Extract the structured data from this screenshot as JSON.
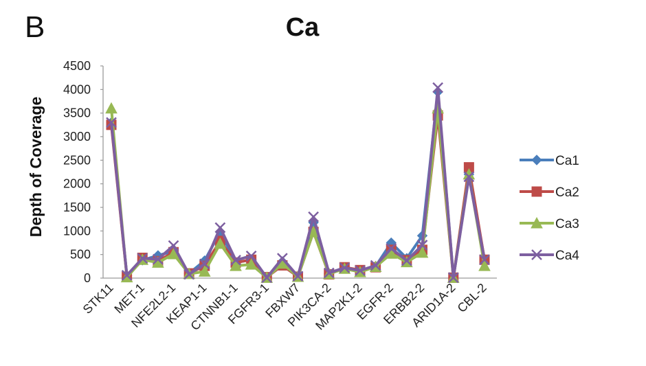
{
  "panel_label": "B",
  "chart_data": {
    "type": "line",
    "title": "Ca",
    "xlabel": "",
    "ylabel": "Depth of Coverage",
    "ylim": [
      0,
      4500
    ],
    "yticks": [
      0,
      500,
      1000,
      1500,
      2000,
      2500,
      3000,
      3500,
      4000,
      4500
    ],
    "grid": false,
    "legend_position": "right",
    "categories": [
      "STK11",
      "",
      "MET-1",
      "",
      "NFE2L2-1",
      "",
      "KEAP1-1",
      "",
      "CTNNB1-1",
      "",
      "FGFR3-1",
      "",
      "FBXW7",
      "",
      "PIK3CA-2",
      "",
      "MAP2K1-2",
      "",
      "EGFR-2",
      "",
      "ERBB2-2",
      "",
      "ARID1A-2",
      "",
      "CBL-2"
    ],
    "series": [
      {
        "name": "Ca1",
        "color": "#4a7ebb",
        "marker": "diamond",
        "values": [
          3300,
          50,
          380,
          480,
          570,
          100,
          370,
          980,
          330,
          390,
          20,
          350,
          30,
          1180,
          100,
          220,
          150,
          250,
          750,
          420,
          900,
          3950,
          20,
          2200,
          400
        ]
      },
      {
        "name": "Ca2",
        "color": "#be4b48",
        "marker": "square",
        "values": [
          3250,
          30,
          430,
          360,
          550,
          100,
          260,
          790,
          330,
          390,
          20,
          270,
          30,
          980,
          80,
          230,
          170,
          230,
          600,
          380,
          600,
          3450,
          10,
          2350,
          390
        ]
      },
      {
        "name": "Ca3",
        "color": "#98b954",
        "marker": "triangle",
        "values": [
          3600,
          20,
          390,
          330,
          510,
          90,
          140,
          730,
          260,
          290,
          10,
          310,
          30,
          980,
          90,
          200,
          130,
          240,
          520,
          340,
          540,
          3600,
          10,
          2200,
          260
        ]
      },
      {
        "name": "Ca4",
        "color": "#7d5fa0",
        "marker": "x",
        "values": [
          3300,
          60,
          420,
          400,
          690,
          80,
          300,
          1070,
          380,
          470,
          10,
          420,
          40,
          1300,
          110,
          220,
          160,
          270,
          630,
          370,
          700,
          4040,
          10,
          2150,
          390
        ]
      }
    ]
  }
}
